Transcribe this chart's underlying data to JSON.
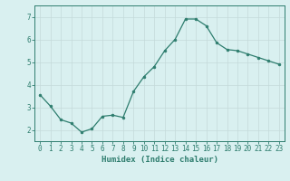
{
  "x": [
    0,
    1,
    2,
    3,
    4,
    5,
    6,
    7,
    8,
    9,
    10,
    11,
    12,
    13,
    14,
    15,
    16,
    17,
    18,
    19,
    20,
    21,
    22,
    23
  ],
  "y": [
    3.55,
    3.05,
    2.45,
    2.3,
    1.9,
    2.05,
    2.6,
    2.65,
    2.55,
    3.7,
    4.35,
    4.8,
    5.5,
    6.0,
    6.9,
    6.9,
    6.6,
    5.85,
    5.55,
    5.5,
    5.35,
    5.2,
    5.05,
    4.9
  ],
  "line_color": "#2e7d6e",
  "marker": "o",
  "marker_size": 2.0,
  "bg_color": "#d9f0f0",
  "grid_color": "#c4dada",
  "xlabel": "Humidex (Indice chaleur)",
  "ylabel": "",
  "xlim": [
    -0.5,
    23.5
  ],
  "ylim": [
    1.5,
    7.5
  ],
  "yticks": [
    2,
    3,
    4,
    5,
    6,
    7
  ],
  "xticks": [
    0,
    1,
    2,
    3,
    4,
    5,
    6,
    7,
    8,
    9,
    10,
    11,
    12,
    13,
    14,
    15,
    16,
    17,
    18,
    19,
    20,
    21,
    22,
    23
  ],
  "xlabel_fontsize": 6.5,
  "tick_fontsize": 5.5,
  "line_width": 0.9
}
